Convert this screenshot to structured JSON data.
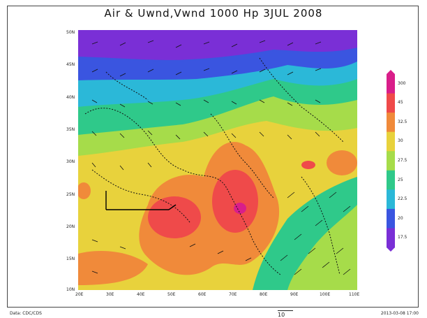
{
  "title": "Air & Uwnd,Vwnd 1000 Hp 3JUL 2008",
  "map": {
    "lon_ticks": [
      "20E",
      "30E",
      "40E",
      "50E",
      "60E",
      "70E",
      "80E",
      "90E",
      "100E",
      "110E"
    ],
    "lat_ticks": [
      "50N",
      "45N",
      "40N",
      "35N",
      "30N",
      "25N",
      "20N",
      "15N",
      "10N"
    ]
  },
  "colorbar": {
    "labels": [
      "300",
      "45",
      "32.5",
      "30",
      "27.5",
      "25",
      "22.5",
      "20",
      "17.5"
    ],
    "colors": [
      "#d91e8a",
      "#ef4a4a",
      "#f08a3a",
      "#e8d23c",
      "#a6dc4a",
      "#2fc98a",
      "#2bb8d8",
      "#3a55e0",
      "#7a2fd6"
    ]
  },
  "footer": {
    "left": "Data: CDC/CDS",
    "center": "10",
    "right": "2013-03-08 17:00"
  }
}
